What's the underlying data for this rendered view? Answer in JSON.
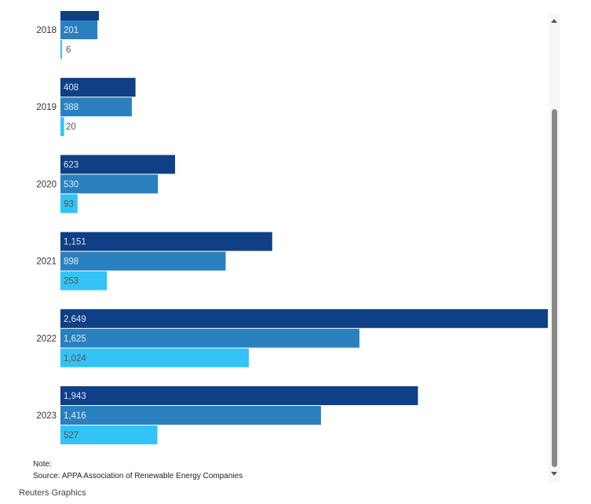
{
  "chart_data": {
    "type": "bar",
    "orientation": "horizontal",
    "categories": [
      "2018",
      "2019",
      "2020",
      "2021",
      "2022",
      "2023"
    ],
    "series": [
      {
        "values": [
          null,
          408,
          623,
          1151,
          2649,
          1943
        ],
        "labels": [
          "",
          "408",
          "623",
          "1,151",
          "2,649",
          "1,943"
        ],
        "color": "#0f3f85",
        "label_color": "#d9e5f5"
      },
      {
        "values": [
          201,
          388,
          530,
          898,
          1625,
          1416
        ],
        "labels": [
          "201",
          "388",
          "530",
          "898",
          "1,625",
          "1,416"
        ],
        "color": "#2a80bf",
        "label_color": "#dcecf8"
      },
      {
        "values": [
          6,
          20,
          93,
          253,
          1024,
          527
        ],
        "labels": [
          "6",
          "20",
          "93",
          "253",
          "1,024",
          "527"
        ],
        "color": "#33c3f7",
        "label_color": "#555555"
      }
    ],
    "xlim": [
      0,
      2649
    ],
    "grid": false
  },
  "footer": {
    "note": "Note:",
    "source": "Source: APPA Association of Renewable Energy Companies",
    "credit": "Reuters Graphics"
  }
}
